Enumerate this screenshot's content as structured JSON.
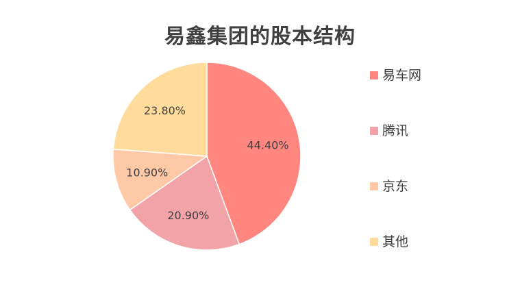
{
  "chart_data": {
    "type": "pie",
    "title": "易鑫集团的股本结构",
    "slices": [
      {
        "label": "易车网",
        "value": 44.4,
        "display": "44.40%",
        "color": "#FF8780"
      },
      {
        "label": "腾讯",
        "value": 20.9,
        "display": "20.90%",
        "color": "#F2A3A7"
      },
      {
        "label": "京东",
        "value": 10.9,
        "display": "10.90%",
        "color": "#FFC9A8"
      },
      {
        "label": "其他",
        "value": 23.8,
        "display": "23.80%",
        "color": "#FFDC9C"
      }
    ],
    "legend_position": "right",
    "start_angle_deg": 0,
    "direction": "clockwise"
  },
  "colors": {
    "title": "#404040",
    "label": "#404040",
    "slice_border": "#ffffff"
  }
}
